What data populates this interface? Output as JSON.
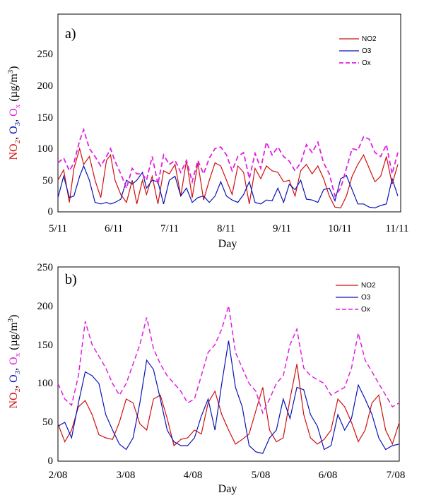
{
  "colors": {
    "NO2": "#d01010",
    "O3": "#0a14b4",
    "Ox": "#e020e0"
  },
  "chart_data": [
    {
      "type": "line",
      "panel_label": "a)",
      "xlabel": "Day",
      "ylabel": {
        "part1": "NO",
        "sub1": "2",
        "sep1": ", ",
        "part2": "O",
        "sub2": "3",
        "sep2": ", ",
        "part3": "O",
        "sub3": "x",
        "unit": " (µg/m",
        "sup": "3",
        "close": ")"
      },
      "ylim": [
        0,
        250
      ],
      "yticks": [
        0,
        50,
        100,
        150,
        200,
        250
      ],
      "xlim": [
        0,
        6
      ],
      "xticks": [
        0,
        1,
        2,
        3,
        4,
        5,
        6
      ],
      "xticklabels": [
        "5/11",
        "6/11",
        "7/11",
        "8/11",
        "9/11",
        "10/11",
        "11/11"
      ],
      "legend_position": "top-right",
      "series": [
        {
          "name": "NO2",
          "x": [
            0,
            0.1,
            0.2,
            0.28,
            0.38,
            0.45,
            0.55,
            0.65,
            0.75,
            0.85,
            0.92,
            1.0,
            1.1,
            1.2,
            1.3,
            1.38,
            1.48,
            1.55,
            1.65,
            1.75,
            1.85,
            1.95,
            2.05,
            2.15,
            2.25,
            2.35,
            2.45,
            2.55,
            2.65,
            2.75,
            2.85,
            2.95,
            3.05,
            3.15,
            3.25,
            3.35,
            3.45,
            3.55,
            3.65,
            3.75,
            3.85,
            3.95,
            4.05,
            4.15,
            4.25,
            4.35,
            4.45,
            4.55,
            4.65,
            4.75,
            4.85,
            4.95,
            5.05,
            5.15,
            5.25,
            5.35,
            5.45,
            5.55,
            5.65,
            5.75,
            5.85,
            5.95
          ],
          "y": [
            40,
            53,
            12,
            55,
            80,
            60,
            70,
            40,
            18,
            65,
            72,
            40,
            22,
            12,
            40,
            10,
            40,
            22,
            45,
            10,
            52,
            48,
            60,
            20,
            65,
            18,
            62,
            15,
            40,
            62,
            58,
            40,
            22,
            58,
            50,
            10,
            55,
            42,
            58,
            52,
            50,
            38,
            40,
            20,
            52,
            60,
            48,
            58,
            42,
            20,
            6,
            5,
            20,
            45,
            60,
            72,
            55,
            38,
            45,
            70,
            35,
            60
          ]
        },
        {
          "name": "O3",
          "x": [
            0,
            0.1,
            0.2,
            0.28,
            0.38,
            0.45,
            0.55,
            0.65,
            0.75,
            0.85,
            0.92,
            1.0,
            1.1,
            1.2,
            1.3,
            1.38,
            1.48,
            1.55,
            1.65,
            1.75,
            1.85,
            1.95,
            2.05,
            2.15,
            2.25,
            2.35,
            2.45,
            2.55,
            2.65,
            2.75,
            2.85,
            2.95,
            3.05,
            3.15,
            3.25,
            3.35,
            3.45,
            3.55,
            3.65,
            3.75,
            3.85,
            3.95,
            4.05,
            4.15,
            4.25,
            4.35,
            4.45,
            4.55,
            4.65,
            4.75,
            4.85,
            4.95,
            5.05,
            5.15,
            5.25,
            5.35,
            5.45,
            5.55,
            5.65,
            5.75,
            5.85,
            5.95
          ],
          "y": [
            18,
            45,
            18,
            20,
            45,
            58,
            40,
            12,
            10,
            12,
            10,
            12,
            16,
            40,
            35,
            40,
            50,
            30,
            40,
            38,
            10,
            40,
            45,
            20,
            30,
            12,
            18,
            20,
            12,
            20,
            38,
            20,
            15,
            12,
            22,
            38,
            12,
            10,
            15,
            14,
            30,
            12,
            35,
            28,
            40,
            16,
            15,
            12,
            28,
            30,
            14,
            42,
            46,
            28,
            10,
            10,
            6,
            5,
            8,
            10,
            42,
            20
          ]
        },
        {
          "name": "Ox",
          "x": [
            0,
            0.1,
            0.2,
            0.28,
            0.38,
            0.45,
            0.55,
            0.65,
            0.75,
            0.85,
            0.92,
            1.0,
            1.1,
            1.2,
            1.3,
            1.38,
            1.48,
            1.55,
            1.65,
            1.75,
            1.85,
            1.95,
            2.05,
            2.15,
            2.25,
            2.35,
            2.45,
            2.55,
            2.65,
            2.75,
            2.85,
            2.95,
            3.05,
            3.15,
            3.25,
            3.35,
            3.45,
            3.55,
            3.65,
            3.75,
            3.85,
            3.95,
            4.05,
            4.15,
            4.25,
            4.35,
            4.45,
            4.55,
            4.65,
            4.75,
            4.85,
            4.95,
            5.05,
            5.15,
            5.25,
            5.35,
            5.45,
            5.55,
            5.65,
            5.75,
            5.85,
            5.95
          ],
          "y": [
            62,
            68,
            52,
            62,
            90,
            104,
            80,
            70,
            58,
            70,
            80,
            64,
            48,
            30,
            55,
            48,
            48,
            40,
            70,
            35,
            72,
            60,
            65,
            50,
            65,
            38,
            65,
            48,
            68,
            80,
            82,
            72,
            52,
            70,
            75,
            42,
            74,
            55,
            88,
            72,
            82,
            70,
            64,
            52,
            62,
            85,
            75,
            88,
            62,
            48,
            20,
            30,
            55,
            80,
            78,
            95,
            92,
            75,
            70,
            85,
            48,
            75
          ]
        }
      ]
    },
    {
      "type": "line",
      "panel_label": "b)",
      "xlabel": "Day",
      "ylabel": {
        "part1": "NO",
        "sub1": "2",
        "sep1": ", ",
        "part2": "O",
        "sub2": "3",
        "sep2": ", ",
        "part3": "O",
        "sub3": "x",
        "unit": " (µg/m",
        "sup": "3",
        "close": ")"
      },
      "ylim": [
        0,
        250
      ],
      "yticks": [
        0,
        50,
        100,
        150,
        200,
        250
      ],
      "xlim": [
        0,
        5
      ],
      "xticks": [
        0,
        1,
        2,
        3,
        4,
        5
      ],
      "xticklabels": [
        "2/08",
        "3/08",
        "4/08",
        "5/08",
        "6/08",
        "7/08"
      ],
      "legend_position": "top-right",
      "series": [
        {
          "name": "NO2",
          "x": [
            0,
            0.1,
            0.2,
            0.3,
            0.4,
            0.5,
            0.6,
            0.7,
            0.8,
            0.9,
            1.0,
            1.1,
            1.2,
            1.3,
            1.4,
            1.5,
            1.6,
            1.7,
            1.8,
            1.9,
            2.0,
            2.1,
            2.2,
            2.3,
            2.4,
            2.5,
            2.6,
            2.7,
            2.8,
            2.9,
            3.0,
            3.1,
            3.2,
            3.3,
            3.4,
            3.5,
            3.6,
            3.7,
            3.8,
            3.9,
            4.0,
            4.1,
            4.2,
            4.3,
            4.4,
            4.5,
            4.6,
            4.7,
            4.8,
            4.9,
            5.0
          ],
          "y": [
            48,
            25,
            40,
            70,
            78,
            60,
            34,
            30,
            28,
            50,
            80,
            75,
            48,
            40,
            80,
            85,
            55,
            20,
            28,
            30,
            40,
            35,
            75,
            90,
            60,
            40,
            22,
            28,
            35,
            65,
            95,
            40,
            25,
            30,
            80,
            125,
            60,
            30,
            22,
            28,
            40,
            80,
            70,
            50,
            25,
            40,
            75,
            85,
            40,
            22,
            50
          ]
        },
        {
          "name": "O3",
          "x": [
            0,
            0.1,
            0.2,
            0.3,
            0.4,
            0.5,
            0.6,
            0.7,
            0.8,
            0.9,
            1.0,
            1.1,
            1.2,
            1.3,
            1.4,
            1.5,
            1.6,
            1.7,
            1.8,
            1.9,
            2.0,
            2.1,
            2.2,
            2.3,
            2.4,
            2.5,
            2.6,
            2.7,
            2.8,
            2.9,
            3.0,
            3.1,
            3.2,
            3.3,
            3.4,
            3.5,
            3.6,
            3.7,
            3.8,
            3.9,
            4.0,
            4.1,
            4.2,
            4.3,
            4.4,
            4.5,
            4.6,
            4.7,
            4.8,
            4.9,
            5.0
          ],
          "y": [
            45,
            50,
            30,
            75,
            115,
            110,
            100,
            60,
            40,
            22,
            15,
            30,
            75,
            130,
            118,
            80,
            40,
            25,
            20,
            20,
            30,
            58,
            80,
            40,
            100,
            155,
            95,
            70,
            20,
            12,
            10,
            30,
            40,
            80,
            55,
            95,
            92,
            60,
            45,
            15,
            20,
            60,
            40,
            55,
            98,
            80,
            60,
            30,
            15,
            20,
            22
          ]
        },
        {
          "name": "Ox",
          "x": [
            0,
            0.1,
            0.2,
            0.3,
            0.4,
            0.5,
            0.6,
            0.7,
            0.8,
            0.9,
            1.0,
            1.1,
            1.2,
            1.3,
            1.4,
            1.5,
            1.6,
            1.7,
            1.8,
            1.9,
            2.0,
            2.1,
            2.2,
            2.3,
            2.4,
            2.5,
            2.6,
            2.7,
            2.8,
            2.9,
            3.0,
            3.1,
            3.2,
            3.3,
            3.4,
            3.5,
            3.6,
            3.7,
            3.8,
            3.9,
            4.0,
            4.1,
            4.2,
            4.3,
            4.4,
            4.5,
            4.6,
            4.7,
            4.8,
            4.9,
            5.0
          ],
          "y": [
            100,
            80,
            72,
            110,
            180,
            150,
            135,
            120,
            100,
            85,
            100,
            125,
            150,
            185,
            145,
            125,
            110,
            100,
            90,
            75,
            80,
            110,
            140,
            150,
            170,
            200,
            140,
            120,
            100,
            90,
            62,
            80,
            100,
            110,
            150,
            170,
            120,
            110,
            105,
            100,
            85,
            90,
            95,
            120,
            165,
            130,
            115,
            100,
            85,
            70,
            75
          ]
        }
      ]
    }
  ]
}
